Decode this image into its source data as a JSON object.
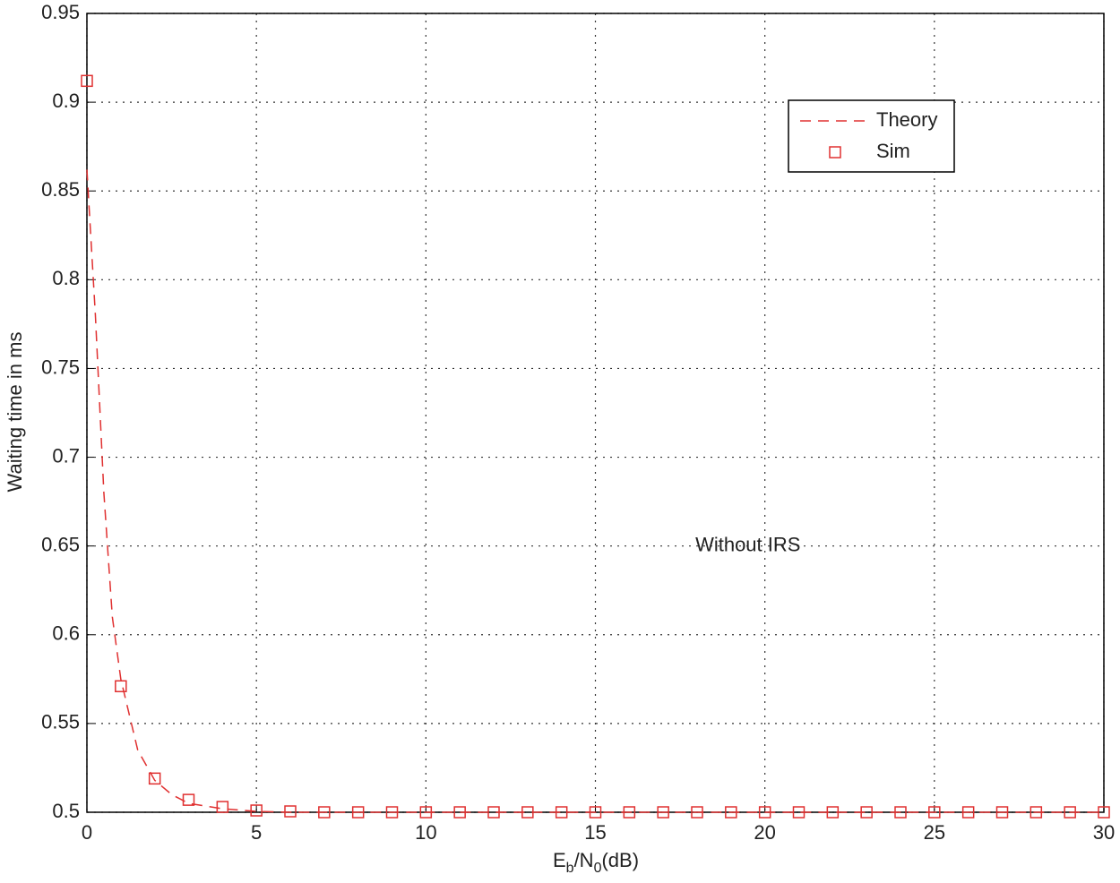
{
  "chart_data": {
    "type": "line",
    "ylabel": "Waiting time in ms",
    "xlabel_parts": [
      "E",
      "b",
      "/N",
      "0",
      "(dB)"
    ],
    "xlim": [
      0,
      30
    ],
    "xticks": [
      0,
      5,
      10,
      15,
      20,
      25,
      30
    ],
    "ylim": [
      0.5,
      0.95
    ],
    "yticks": [
      0.5,
      0.55,
      0.6,
      0.65,
      0.7,
      0.75,
      0.8,
      0.85,
      0.9,
      0.95
    ],
    "grid": true,
    "legend": "upper right",
    "annotations": [
      {
        "text": "Without IRS",
        "x": 19.5,
        "y": 0.65
      }
    ],
    "series": [
      {
        "name": "Theory",
        "color": "#e03030",
        "style": "dashed",
        "x": [
          0,
          0.25,
          0.5,
          0.75,
          1,
          1.5,
          2,
          2.5,
          3,
          4,
          5,
          6,
          8,
          10,
          15,
          20,
          25,
          30
        ],
        "values": [
          0.862,
          0.78,
          0.68,
          0.61,
          0.575,
          0.535,
          0.518,
          0.51,
          0.505,
          0.502,
          0.5005,
          0.5,
          0.5,
          0.5,
          0.5,
          0.5,
          0.5,
          0.5
        ]
      },
      {
        "name": "Sim",
        "color": "#e03030",
        "style": "square",
        "x": [
          0,
          1,
          2,
          3,
          4,
          5,
          6,
          7,
          8,
          9,
          10,
          11,
          12,
          13,
          14,
          15,
          16,
          17,
          18,
          19,
          20,
          21,
          22,
          23,
          24,
          25,
          26,
          27,
          28,
          29,
          30
        ],
        "values": [
          0.912,
          0.571,
          0.519,
          0.507,
          0.503,
          0.501,
          0.5005,
          0.5,
          0.5,
          0.5,
          0.5,
          0.5,
          0.5,
          0.5,
          0.5,
          0.5,
          0.5,
          0.5,
          0.5,
          0.5,
          0.5,
          0.5,
          0.5,
          0.5,
          0.5,
          0.5,
          0.5,
          0.5,
          0.5,
          0.5,
          0.5
        ]
      }
    ]
  }
}
